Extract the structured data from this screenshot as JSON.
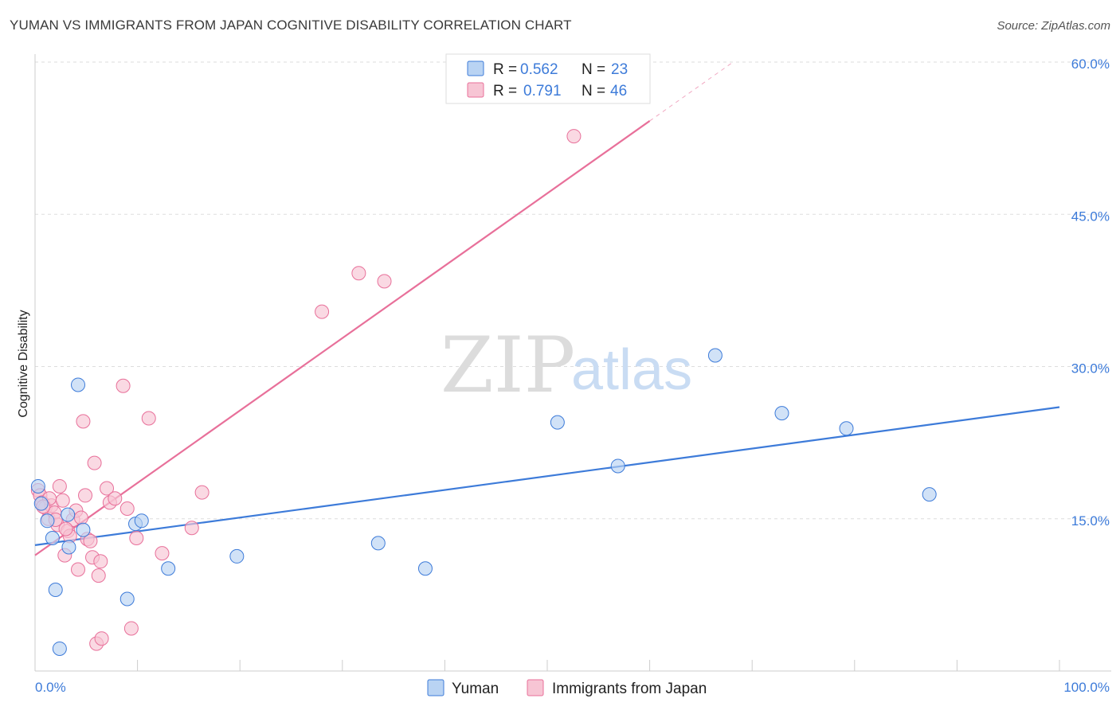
{
  "title": "YUMAN VS IMMIGRANTS FROM JAPAN COGNITIVE DISABILITY CORRELATION CHART",
  "source": "Source: ZipAtlas.com",
  "watermark": {
    "zip": "ZIP",
    "atlas": "atlas"
  },
  "colors": {
    "blue": "#3d7bd9",
    "pink": "#e8709a",
    "blue_fill": "#b9d3f3",
    "pink_fill": "#f7c5d4"
  },
  "legend": {
    "r_label": "R =",
    "n_label": "N =",
    "rows": [
      {
        "series": "Yuman",
        "r": "0.562",
        "n": "23"
      },
      {
        "series": "Immigrants from Japan",
        "r": "0.791",
        "n": "46"
      }
    ]
  },
  "chart_data": {
    "type": "scatter",
    "title": "YUMAN VS IMMIGRANTS FROM JAPAN COGNITIVE DISABILITY CORRELATION CHART",
    "xlabel": "",
    "ylabel": "Cognitive Disability",
    "xlim": [
      0,
      100
    ],
    "ylim": [
      0,
      60
    ],
    "x_tick_labels": [
      "0.0%",
      "100.0%"
    ],
    "y_tick_labels": [
      "15.0%",
      "30.0%",
      "45.0%",
      "60.0%"
    ],
    "y_ticks": [
      15,
      30,
      45,
      60
    ],
    "legend_position": "bottom-center",
    "series": [
      {
        "name": "Yuman",
        "color": "#3d7bd9",
        "points": [
          [
            0.3,
            18.2
          ],
          [
            0.6,
            16.5
          ],
          [
            1.2,
            14.8
          ],
          [
            1.7,
            13.1
          ],
          [
            2.0,
            8.0
          ],
          [
            2.4,
            2.2
          ],
          [
            3.2,
            15.4
          ],
          [
            3.3,
            12.2
          ],
          [
            4.2,
            28.2
          ],
          [
            4.7,
            13.9
          ],
          [
            9.0,
            7.1
          ],
          [
            9.8,
            14.5
          ],
          [
            10.4,
            14.8
          ],
          [
            13.0,
            10.1
          ],
          [
            19.7,
            11.3
          ],
          [
            33.5,
            12.6
          ],
          [
            38.1,
            10.1
          ],
          [
            51.0,
            24.5
          ],
          [
            56.9,
            20.2
          ],
          [
            66.4,
            31.1
          ],
          [
            72.9,
            25.4
          ],
          [
            79.2,
            23.9
          ],
          [
            87.3,
            17.4
          ]
        ],
        "trend": {
          "x": [
            0,
            100
          ],
          "y": [
            12.4,
            26.0
          ]
        }
      },
      {
        "name": "Immigrants from Japan",
        "color": "#e8709a",
        "points": [
          [
            0.3,
            17.8
          ],
          [
            0.5,
            17.3
          ],
          [
            0.7,
            16.6
          ],
          [
            1.0,
            16.1
          ],
          [
            1.3,
            15.0
          ],
          [
            1.6,
            16.3
          ],
          [
            1.9,
            15.6
          ],
          [
            2.2,
            14.4
          ],
          [
            2.4,
            18.2
          ],
          [
            2.7,
            16.8
          ],
          [
            2.9,
            11.4
          ],
          [
            3.2,
            13.8
          ],
          [
            3.4,
            13.3
          ],
          [
            3.7,
            14.9
          ],
          [
            4.0,
            15.8
          ],
          [
            4.2,
            10.0
          ],
          [
            4.5,
            15.1
          ],
          [
            4.7,
            24.6
          ],
          [
            4.9,
            17.3
          ],
          [
            5.1,
            13.0
          ],
          [
            5.4,
            12.8
          ],
          [
            5.6,
            11.2
          ],
          [
            5.8,
            20.5
          ],
          [
            6.0,
            2.7
          ],
          [
            6.2,
            9.4
          ],
          [
            6.4,
            10.8
          ],
          [
            6.5,
            3.2
          ],
          [
            7.0,
            18.0
          ],
          [
            7.3,
            16.6
          ],
          [
            7.8,
            17.0
          ],
          [
            8.6,
            28.1
          ],
          [
            9.0,
            16.0
          ],
          [
            9.4,
            4.2
          ],
          [
            9.9,
            13.1
          ],
          [
            11.1,
            24.9
          ],
          [
            12.4,
            11.6
          ],
          [
            15.3,
            14.1
          ],
          [
            16.3,
            17.6
          ],
          [
            28.0,
            35.4
          ],
          [
            31.6,
            39.2
          ],
          [
            34.1,
            38.4
          ],
          [
            52.6,
            52.7
          ],
          [
            2.0,
            14.9
          ],
          [
            1.4,
            17.0
          ],
          [
            3.0,
            14.0
          ],
          [
            0.8,
            16.2
          ]
        ],
        "trend": {
          "x": [
            0,
            60
          ],
          "y": [
            11.4,
            54.2
          ]
        },
        "trend_dashed": {
          "x": [
            60,
            68
          ],
          "y": [
            54.2,
            59.9
          ]
        }
      }
    ]
  }
}
